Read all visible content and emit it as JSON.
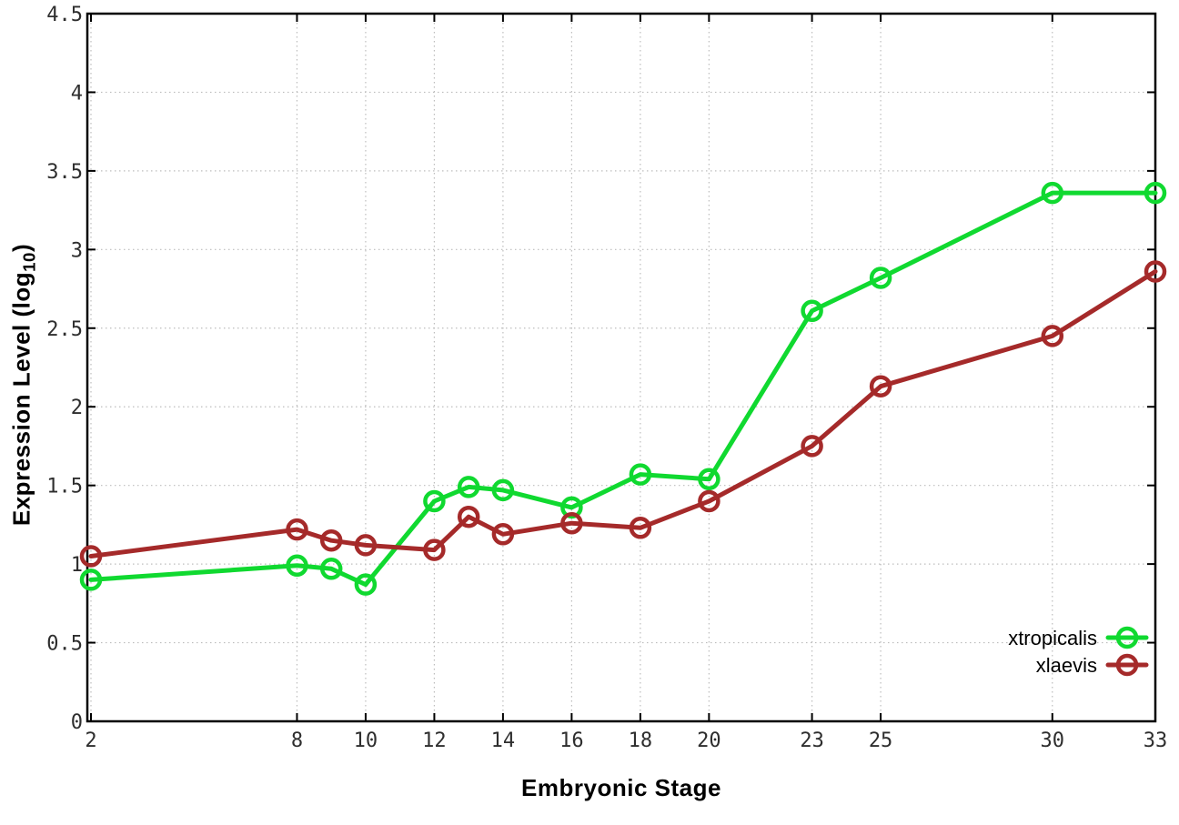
{
  "page": {
    "background": "#ffffff"
  },
  "chart_data": {
    "type": "line",
    "title": "",
    "xlabel": "Embryonic Stage",
    "ylabel": "Expression Level (log10)",
    "ylabel_parts": {
      "prefix": "Expression Level (log",
      "subscript": "10",
      "suffix": ")"
    },
    "x": [
      2,
      8,
      9,
      10,
      12,
      13,
      14,
      16,
      18,
      20,
      23,
      25,
      30,
      33
    ],
    "xticks": [
      2,
      8,
      10,
      12,
      14,
      16,
      18,
      20,
      23,
      25,
      30,
      33
    ],
    "xtick_labels": [
      "2",
      "8",
      "10",
      "12",
      "14",
      "16",
      "18",
      "20",
      "23",
      "25",
      "30",
      "33"
    ],
    "yticks": [
      0,
      0.5,
      1,
      1.5,
      2,
      2.5,
      3,
      3.5,
      4,
      4.5
    ],
    "ytick_labels": [
      "0",
      "0.5",
      "1",
      "1.5",
      "2",
      "2.5",
      "3",
      "3.5",
      "4",
      "4.5"
    ],
    "xlim": [
      2,
      33
    ],
    "ylim": [
      0,
      4.5
    ],
    "grid": true,
    "legend": {
      "position": "inside-bottom-right",
      "entries": [
        "xtropicalis",
        "xlaevis"
      ]
    },
    "series": [
      {
        "name": "xtropicalis",
        "color": "#10d930",
        "marker": "open-circle",
        "values": [
          0.9,
          0.99,
          0.97,
          0.87,
          1.4,
          1.49,
          1.47,
          1.36,
          1.57,
          1.54,
          2.61,
          2.82,
          3.36,
          3.36
        ]
      },
      {
        "name": "xlaevis",
        "color": "#a52a2a",
        "marker": "open-circle",
        "values": [
          1.05,
          1.22,
          1.15,
          1.12,
          1.09,
          1.3,
          1.19,
          1.26,
          1.23,
          1.4,
          1.75,
          2.13,
          2.45,
          2.86
        ]
      }
    ],
    "styles": {
      "grid_color": "#bdbdbd",
      "axis_color": "#000000",
      "tick_label_color": "#2e2e2e"
    }
  }
}
